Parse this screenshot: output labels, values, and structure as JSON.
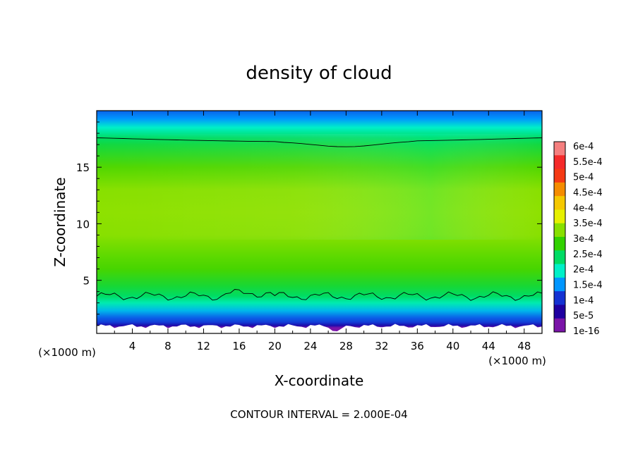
{
  "chart_data": {
    "type": "heatmap",
    "title": "density of cloud",
    "xlabel": "X-coordinate",
    "ylabel": "Z-coordinate",
    "x_unit": "(×1000 m)",
    "footer": "CONTOUR INTERVAL = 2.000E-04",
    "xlim": [
      0,
      50
    ],
    "ylim": [
      0.3,
      20
    ],
    "x_ticks": [
      4,
      8,
      12,
      16,
      20,
      24,
      28,
      32,
      36,
      40,
      44,
      48
    ],
    "y_ticks": [
      5,
      10,
      15
    ],
    "colorbar": {
      "labels": [
        "6e-4",
        "5.5e-4",
        "5e-4",
        "4.5e-4",
        "4e-4",
        "3.5e-4",
        "3e-4",
        "2.5e-4",
        "2e-4",
        "1.5e-4",
        "1e-4",
        "5e-5",
        "1e-16"
      ],
      "colors": [
        "#f57f7f",
        "#f52a2a",
        "#f53a14",
        "#f58c00",
        "#f5c800",
        "#e6f000",
        "#88e000",
        "#32d200",
        "#00dc64",
        "#00f0c8",
        "#0096ff",
        "#1432d2",
        "#1e00a0",
        "#7a14a8"
      ]
    },
    "profile_z": [
      0.3,
      0.8,
      1.0,
      1.3,
      1.7,
      2.3,
      3.0,
      3.6,
      4.5,
      6.0,
      7.0,
      9.0,
      11.0,
      13.0,
      15.0,
      17.0,
      17.6,
      18.5,
      19.3,
      20.0
    ],
    "profile_density": [
      1e-16,
      1e-16,
      2e-05,
      6e-05,
      9e-05,
      0.00013,
      0.00017,
      0.0002,
      0.00024,
      0.00027,
      0.00029,
      0.0003,
      0.000305,
      0.0003,
      0.00028,
      0.00023,
      0.0002,
      0.00015,
      0.0001,
      9e-05
    ]
  }
}
